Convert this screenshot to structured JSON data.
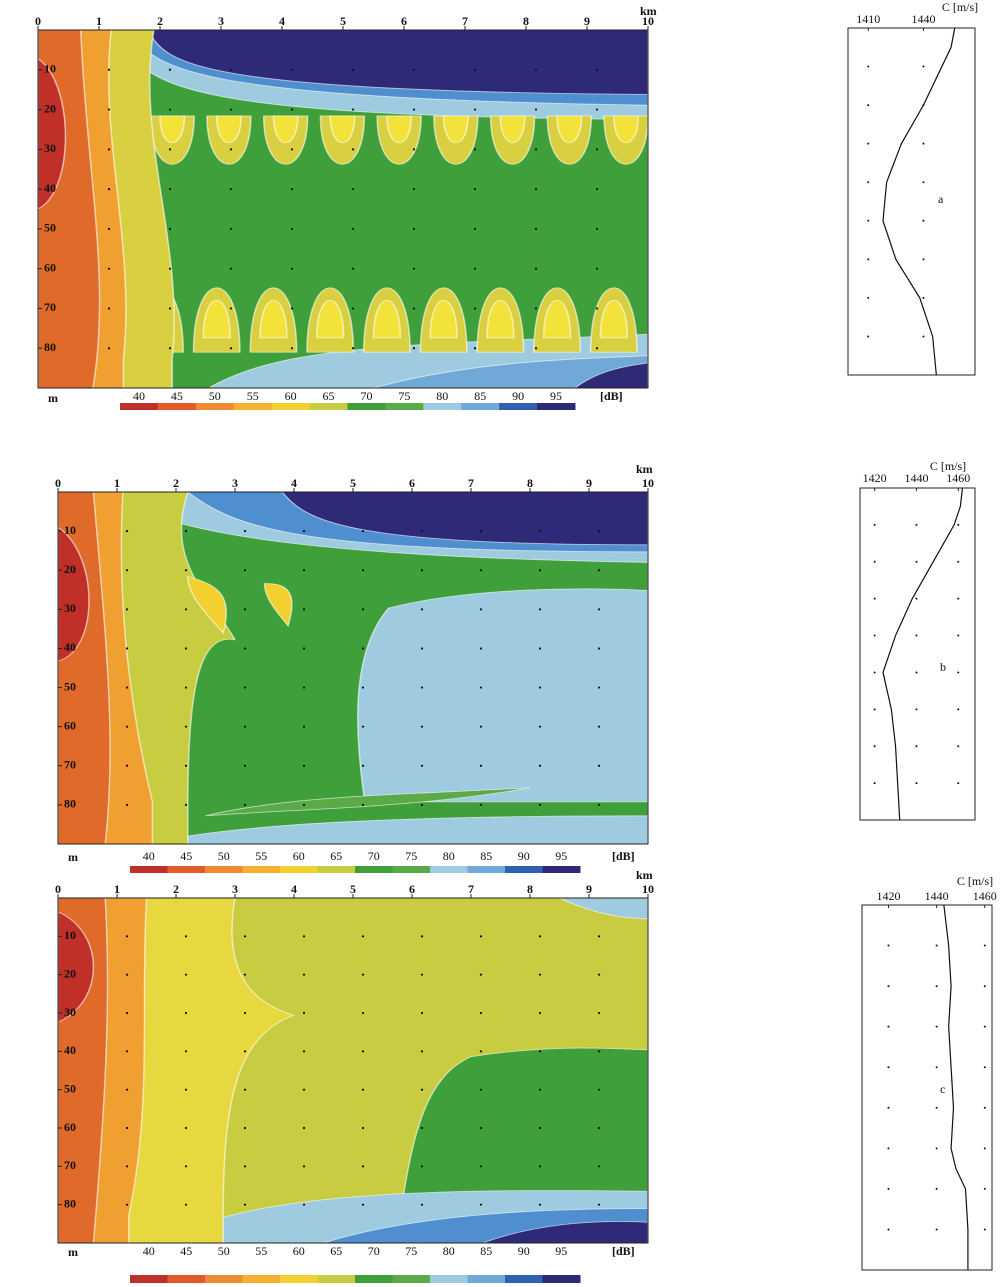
{
  "panels": [
    {
      "label": "a",
      "x_unit": "km",
      "y_unit": "m",
      "xlim": [
        0,
        10
      ],
      "ylim": [
        0,
        90
      ],
      "xticks": [
        0,
        1,
        2,
        3,
        4,
        5,
        6,
        7,
        8,
        9,
        10
      ],
      "yticks": [
        10,
        20,
        30,
        40,
        50,
        60,
        70,
        80
      ],
      "colorbar": {
        "ticks": [
          40,
          45,
          50,
          55,
          60,
          65,
          70,
          75,
          80,
          85,
          90,
          95
        ],
        "unit": "[dB]",
        "colors": [
          "#c0302a",
          "#e05a2a",
          "#f08a30",
          "#f5b030",
          "#f2d030",
          "#c8cc40",
          "#3f9f3a",
          "#5aaa48",
          "#9fcbe0",
          "#70a8d8",
          "#3060b0",
          "#2e2a78"
        ]
      },
      "profile": {
        "unit": "C [m/s]",
        "xlim": [
          1399,
          1468
        ],
        "ticks": [
          1410,
          1440
        ],
        "depths": [
          0,
          5,
          10,
          20,
          30,
          40,
          50,
          60,
          70,
          80,
          90
        ],
        "speeds": [
          1457,
          1455,
          1450,
          1440,
          1428,
          1420,
          1418,
          1425,
          1438,
          1445,
          1447
        ]
      }
    },
    {
      "label": "b",
      "x_unit": "km",
      "y_unit": "m",
      "xlim": [
        0,
        10
      ],
      "ylim": [
        0,
        90
      ],
      "xticks": [
        0,
        1,
        2,
        3,
        4,
        5,
        6,
        7,
        8,
        9,
        10
      ],
      "yticks": [
        10,
        20,
        30,
        40,
        50,
        60,
        70,
        80
      ],
      "colorbar": {
        "ticks": [
          40,
          45,
          50,
          55,
          60,
          65,
          70,
          75,
          80,
          85,
          90,
          95
        ],
        "unit": "[dB]",
        "colors": [
          "#c0302a",
          "#e05a2a",
          "#f08a30",
          "#f5b030",
          "#f2d030",
          "#c8cc40",
          "#3f9f3a",
          "#5aaa48",
          "#9fcbe0",
          "#70a8d8",
          "#3060b0",
          "#2e2a78"
        ]
      },
      "profile": {
        "unit": "C [m/s]",
        "xlim": [
          1413,
          1468
        ],
        "ticks": [
          1420,
          1440,
          1460
        ],
        "depths": [
          0,
          5,
          10,
          20,
          30,
          40,
          50,
          60,
          70,
          80,
          90
        ],
        "speeds": [
          1462,
          1461,
          1458,
          1448,
          1438,
          1430,
          1424,
          1428,
          1430,
          1431,
          1432
        ]
      }
    },
    {
      "label": "c",
      "x_unit": "km",
      "y_unit": "m",
      "xlim": [
        0,
        10
      ],
      "ylim": [
        0,
        90
      ],
      "xticks": [
        0,
        1,
        2,
        3,
        4,
        5,
        6,
        7,
        8,
        9,
        10
      ],
      "yticks": [
        10,
        20,
        30,
        40,
        50,
        60,
        70,
        80
      ],
      "colorbar": {
        "ticks": [
          40,
          45,
          50,
          55,
          60,
          65,
          70,
          75,
          80,
          85,
          90,
          95
        ],
        "unit": "[dB]",
        "colors": [
          "#c0302a",
          "#e05a2a",
          "#f08a30",
          "#f5b030",
          "#f2d030",
          "#c8cc40",
          "#3f9f3a",
          "#5aaa48",
          "#9fcbe0",
          "#70a8d8",
          "#3060b0",
          "#2e2a78"
        ]
      },
      "profile": {
        "unit": "C [m/s]",
        "xlim": [
          1409,
          1463
        ],
        "ticks": [
          1420,
          1440,
          1460
        ],
        "depths": [
          0,
          5,
          10,
          20,
          30,
          40,
          50,
          60,
          65,
          70,
          80,
          90
        ],
        "speeds": [
          1443,
          1444,
          1445,
          1446,
          1445,
          1446,
          1447,
          1446,
          1448,
          1452,
          1453,
          1453
        ]
      }
    }
  ]
}
